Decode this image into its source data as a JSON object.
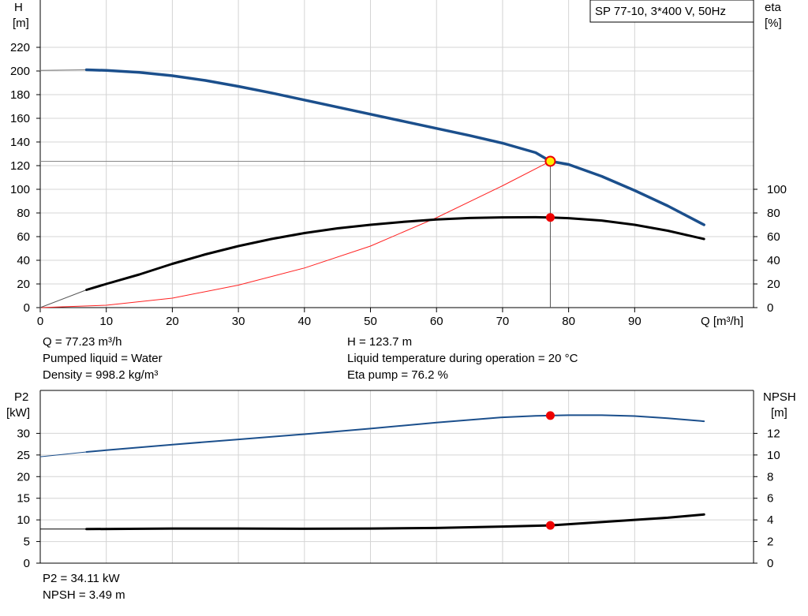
{
  "chart_data": [
    {
      "type": "line",
      "legend_box": "SP 77-10, 3*400 V, 50Hz",
      "legend_placement": "top-right",
      "xlabel": "Q [m³/h]",
      "xlim": [
        0,
        108
      ],
      "xticks": [
        0,
        10,
        20,
        30,
        40,
        50,
        60,
        70,
        80,
        90
      ],
      "ylabel": [
        "H",
        "[m]"
      ],
      "ylim": [
        0,
        240
      ],
      "yticks": [
        0,
        20,
        40,
        60,
        80,
        100,
        120,
        140,
        160,
        180,
        200,
        220
      ],
      "y2label": [
        "eta",
        "[%]"
      ],
      "y2ticks": [
        0,
        20,
        40,
        60,
        80,
        100
      ],
      "grid": true,
      "series": [
        {
          "key": "H",
          "color": "#1b4f8c",
          "width": 3.5,
          "x": [
            7,
            10,
            15,
            20,
            25,
            30,
            35,
            40,
            45,
            50,
            55,
            60,
            65,
            70,
            75,
            77.23,
            80,
            85,
            90,
            95,
            100.5
          ],
          "y": [
            201,
            200.5,
            198.8,
            196,
            192,
            187,
            181.5,
            175.5,
            169.5,
            163.5,
            157.5,
            151.5,
            145.5,
            139,
            131,
            123.7,
            121,
            111,
            99,
            86,
            70
          ]
        },
        {
          "key": "eta",
          "color": "#000000",
          "width": 3,
          "x": [
            7,
            10,
            15,
            20,
            25,
            30,
            35,
            40,
            45,
            50,
            55,
            60,
            65,
            70,
            75,
            77.23,
            80,
            85,
            90,
            95,
            100.5
          ],
          "y": [
            15,
            20,
            28,
            37,
            45,
            52,
            58,
            63,
            67,
            70,
            72.5,
            74.5,
            75.7,
            76.3,
            76.4,
            76.2,
            75.6,
            73.6,
            70,
            65,
            58
          ]
        },
        {
          "key": "H-extrap",
          "color": "#777777",
          "width": 1,
          "x": [
            0,
            7
          ],
          "y": [
            200.5,
            201
          ]
        },
        {
          "key": "eta-extrap",
          "color": "#555555",
          "width": 1,
          "x": [
            0,
            7
          ],
          "y": [
            0,
            15
          ]
        },
        {
          "key": "system",
          "color": "#ff2222",
          "width": 1,
          "x": [
            0,
            10,
            20,
            30,
            40,
            50,
            60,
            70,
            77.23
          ],
          "y": [
            0,
            2,
            8,
            19,
            33.5,
            52,
            76,
            103,
            123.7
          ]
        }
      ],
      "duty_point": {
        "Q": 77.23,
        "H": 123.7,
        "eta": 76.2
      }
    },
    {
      "type": "line",
      "xlim": [
        0,
        108
      ],
      "xticks": [
        0,
        10,
        20,
        30,
        40,
        50,
        60,
        70,
        80,
        90
      ],
      "ylabel": [
        "P2",
        "[kW]"
      ],
      "ylim": [
        0,
        35
      ],
      "yticks": [
        0,
        5,
        10,
        15,
        20,
        25,
        30
      ],
      "y2label": [
        "NPSH",
        "[m]"
      ],
      "y2lim": [
        0,
        14
      ],
      "y2ticks": [
        0,
        2,
        4,
        6,
        8,
        10,
        12
      ],
      "grid": true,
      "series": [
        {
          "key": "P2",
          "color": "#1b4f8c",
          "width": 2,
          "x": [
            7,
            10,
            20,
            30,
            40,
            50,
            60,
            70,
            75,
            80,
            85,
            90,
            95,
            100.5
          ],
          "y": [
            25.7,
            26.1,
            27.4,
            28.6,
            29.8,
            31.1,
            32.5,
            33.7,
            34.05,
            34.2,
            34.2,
            34,
            33.5,
            32.8
          ]
        },
        {
          "key": "P2-extrap",
          "color": "#1b4f8c",
          "width": 1,
          "x": [
            0,
            7
          ],
          "y": [
            24.6,
            25.7
          ]
        },
        {
          "key": "NPSH",
          "color": "#000000",
          "width": 3,
          "x": [
            7,
            20,
            30,
            40,
            50,
            60,
            70,
            77.23,
            80,
            85,
            90,
            95,
            100.5
          ],
          "y": [
            3.15,
            3.2,
            3.2,
            3.18,
            3.2,
            3.25,
            3.38,
            3.49,
            3.6,
            3.8,
            4.0,
            4.2,
            4.5
          ]
        },
        {
          "key": "NPSH-extrap",
          "color": "#000000",
          "width": 1,
          "x": [
            0,
            7
          ],
          "y": [
            3.15,
            3.15
          ]
        }
      ],
      "duty_point": {
        "Q": 77.23,
        "P2": 34.11,
        "NPSH": 3.49
      }
    }
  ],
  "info": {
    "q": "Q = 77.23 m³/h",
    "liquid": "Pumped liquid = Water",
    "density": "Density = 998.2 kg/m³",
    "h": "H = 123.7 m",
    "temp": "Liquid temperature during operation = 20 °C",
    "eta": "Eta pump = 76.2 %",
    "p2": "P2 = 34.11 kW",
    "npsh": "NPSH = 3.49 m"
  }
}
